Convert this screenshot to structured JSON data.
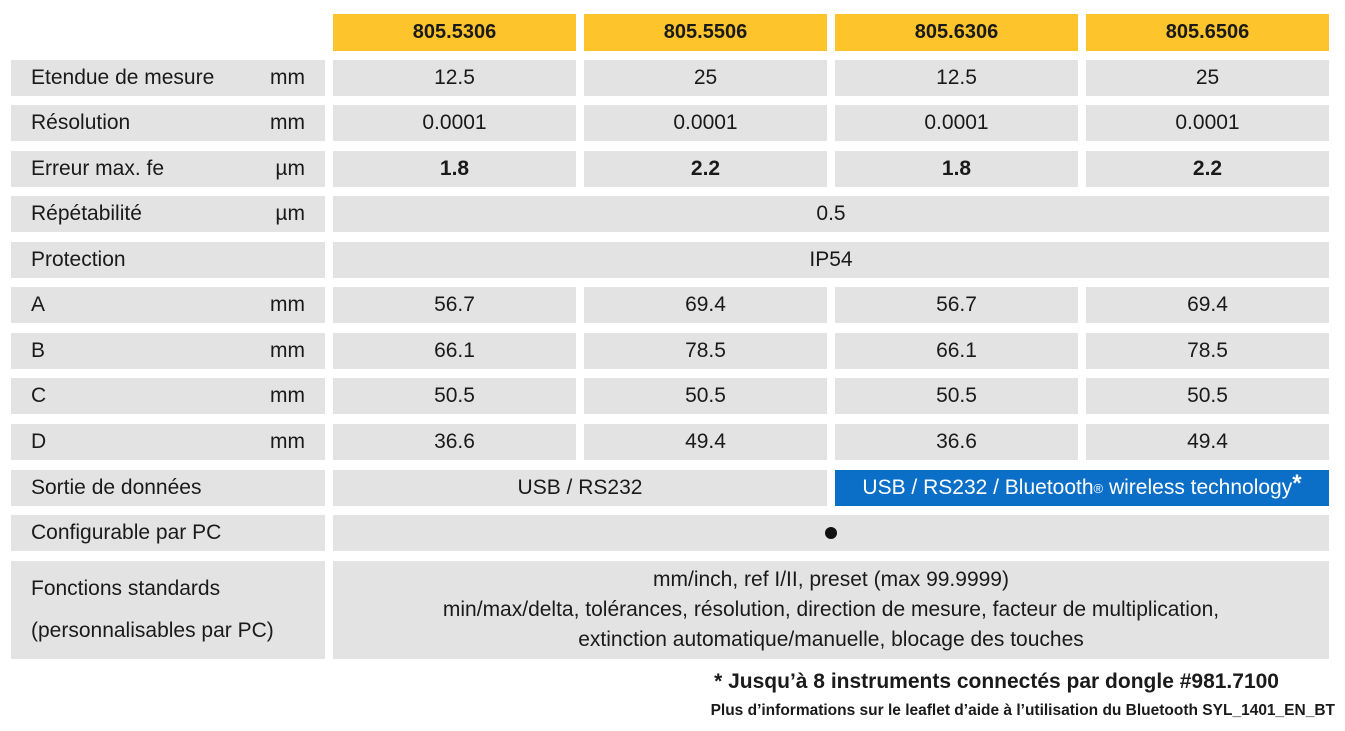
{
  "headers": [
    "805.5306",
    "805.5506",
    "805.6306",
    "805.6506"
  ],
  "rows": {
    "etendue": {
      "label": "Etendue de mesure",
      "unit": "mm",
      "values": [
        "12.5",
        "25",
        "12.5",
        "25"
      ]
    },
    "resolution": {
      "label": "Résolution",
      "unit": "mm",
      "values": [
        "0.0001",
        "0.0001",
        "0.0001",
        "0.0001"
      ]
    },
    "erreur": {
      "label": "Erreur max. fe",
      "unit": "µm",
      "values": [
        "1.8",
        "2.2",
        "1.8",
        "2.2"
      ]
    },
    "repetabilite": {
      "label": "Répétabilité",
      "unit": "µm",
      "value": "0.5"
    },
    "protection": {
      "label": "Protection",
      "unit": "",
      "value": "IP54"
    },
    "a": {
      "label": "A",
      "unit": "mm",
      "values": [
        "56.7",
        "69.4",
        "56.7",
        "69.4"
      ]
    },
    "b": {
      "label": "B",
      "unit": "mm",
      "values": [
        "66.1",
        "78.5",
        "66.1",
        "78.5"
      ]
    },
    "c": {
      "label": "C",
      "unit": "mm",
      "values": [
        "50.5",
        "50.5",
        "50.5",
        "50.5"
      ]
    },
    "d": {
      "label": "D",
      "unit": "mm",
      "values": [
        "36.6",
        "49.4",
        "36.6",
        "49.4"
      ]
    },
    "sortie": {
      "label": "Sortie de données",
      "value_left": "USB / RS232",
      "value_right": "USB / RS232 / Bluetooth",
      "value_right_reg": "®",
      "value_right_tail": " wireless technology",
      "value_right_star": "*"
    },
    "configurable": {
      "label": "Configurable par PC"
    },
    "fonctions": {
      "label_line1": "Fonctions standards",
      "label_line2": "(personnalisables par PC)",
      "lines": [
        "mm/inch, ref I/II, preset (max 99.9999)",
        "min/max/delta, tolérances, résolution, direction de mesure, facteur de multiplication,",
        "extinction automatique/manuelle, blocage des touches"
      ]
    }
  },
  "footnote": {
    "line1": "* Jusqu’à 8 instruments connectés par dongle #981.7100",
    "line2": "Plus d’informations sur le leaflet d’aide à l’utilisation du Bluetooth SYL_1401_EN_BT"
  },
  "colors": {
    "header": "#fdc52b",
    "cell": "#e3e3e3",
    "highlight": "#0b6fc7"
  }
}
